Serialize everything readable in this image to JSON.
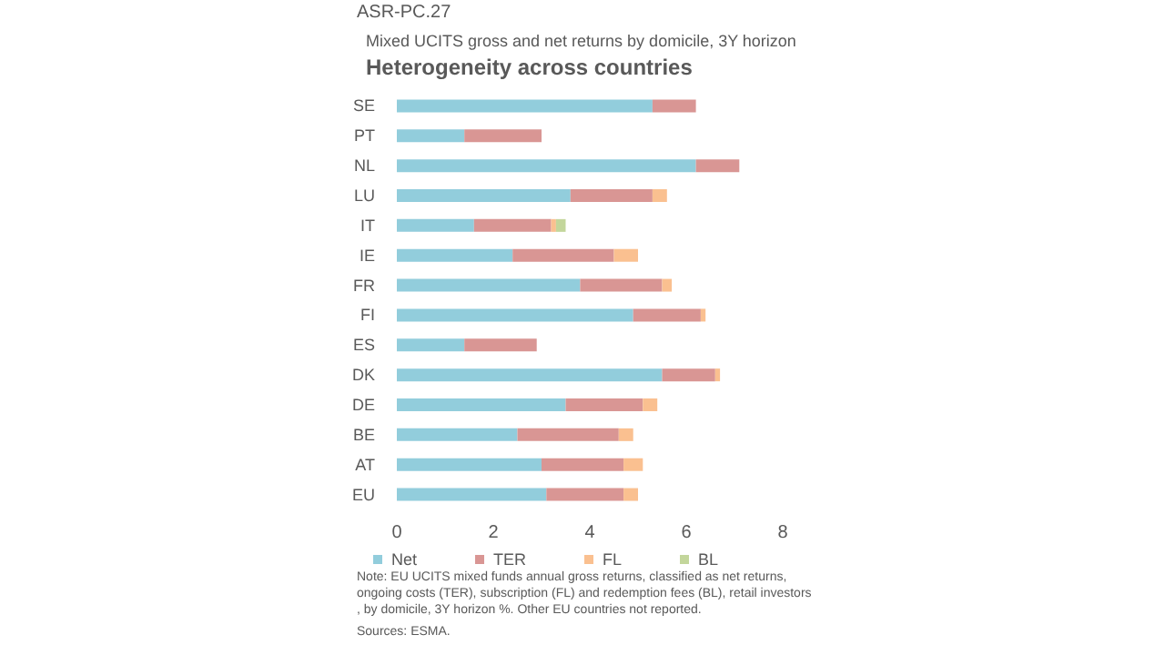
{
  "chart_data": {
    "type": "bar",
    "orientation": "horizontal",
    "stacked": true,
    "title": "Heterogeneity across countries",
    "subtitle": "Mixed UCITS gross and net returns by domicile, 3Y horizon",
    "annotations": [
      "ASR-PC.27",
      "Note: EU UCITS mixed funds annual gross returns, classified as net returns, ongoing costs (TER), subscription (FL) and redemption fees (BL), retail investors, by domicile, 3Y horizon %. Other EU countries not reported.",
      "Sources: ESMA."
    ],
    "categories": [
      "SE",
      "PT",
      "NL",
      "LU",
      "IT",
      "IE",
      "FR",
      "FI",
      "ES",
      "DK",
      "DE",
      "BE",
      "AT",
      "EU"
    ],
    "series": [
      {
        "name": "Net",
        "color": "#92cddc",
        "values": [
          5.3,
          1.4,
          6.2,
          3.6,
          1.6,
          2.4,
          3.8,
          4.9,
          1.4,
          5.5,
          3.5,
          2.5,
          3.0,
          3.1
        ]
      },
      {
        "name": "TER",
        "color": "#d99694",
        "values": [
          0.9,
          1.6,
          0.9,
          1.7,
          1.6,
          2.1,
          1.7,
          1.4,
          1.5,
          1.1,
          1.6,
          2.1,
          1.7,
          1.6
        ]
      },
      {
        "name": "FL",
        "color": "#fac090",
        "values": [
          null,
          null,
          null,
          0.3,
          0.1,
          0.5,
          0.2,
          0.1,
          null,
          0.1,
          0.3,
          0.3,
          0.4,
          0.3
        ]
      },
      {
        "name": "BL",
        "color": "#c3d69b",
        "values": [
          null,
          null,
          null,
          null,
          0.2,
          null,
          null,
          null,
          null,
          null,
          null,
          null,
          null,
          null
        ]
      }
    ],
    "xlim": [
      0,
      8
    ],
    "xticks": [
      0,
      2,
      4,
      6,
      8
    ],
    "grid": false,
    "legend": "bottom"
  }
}
